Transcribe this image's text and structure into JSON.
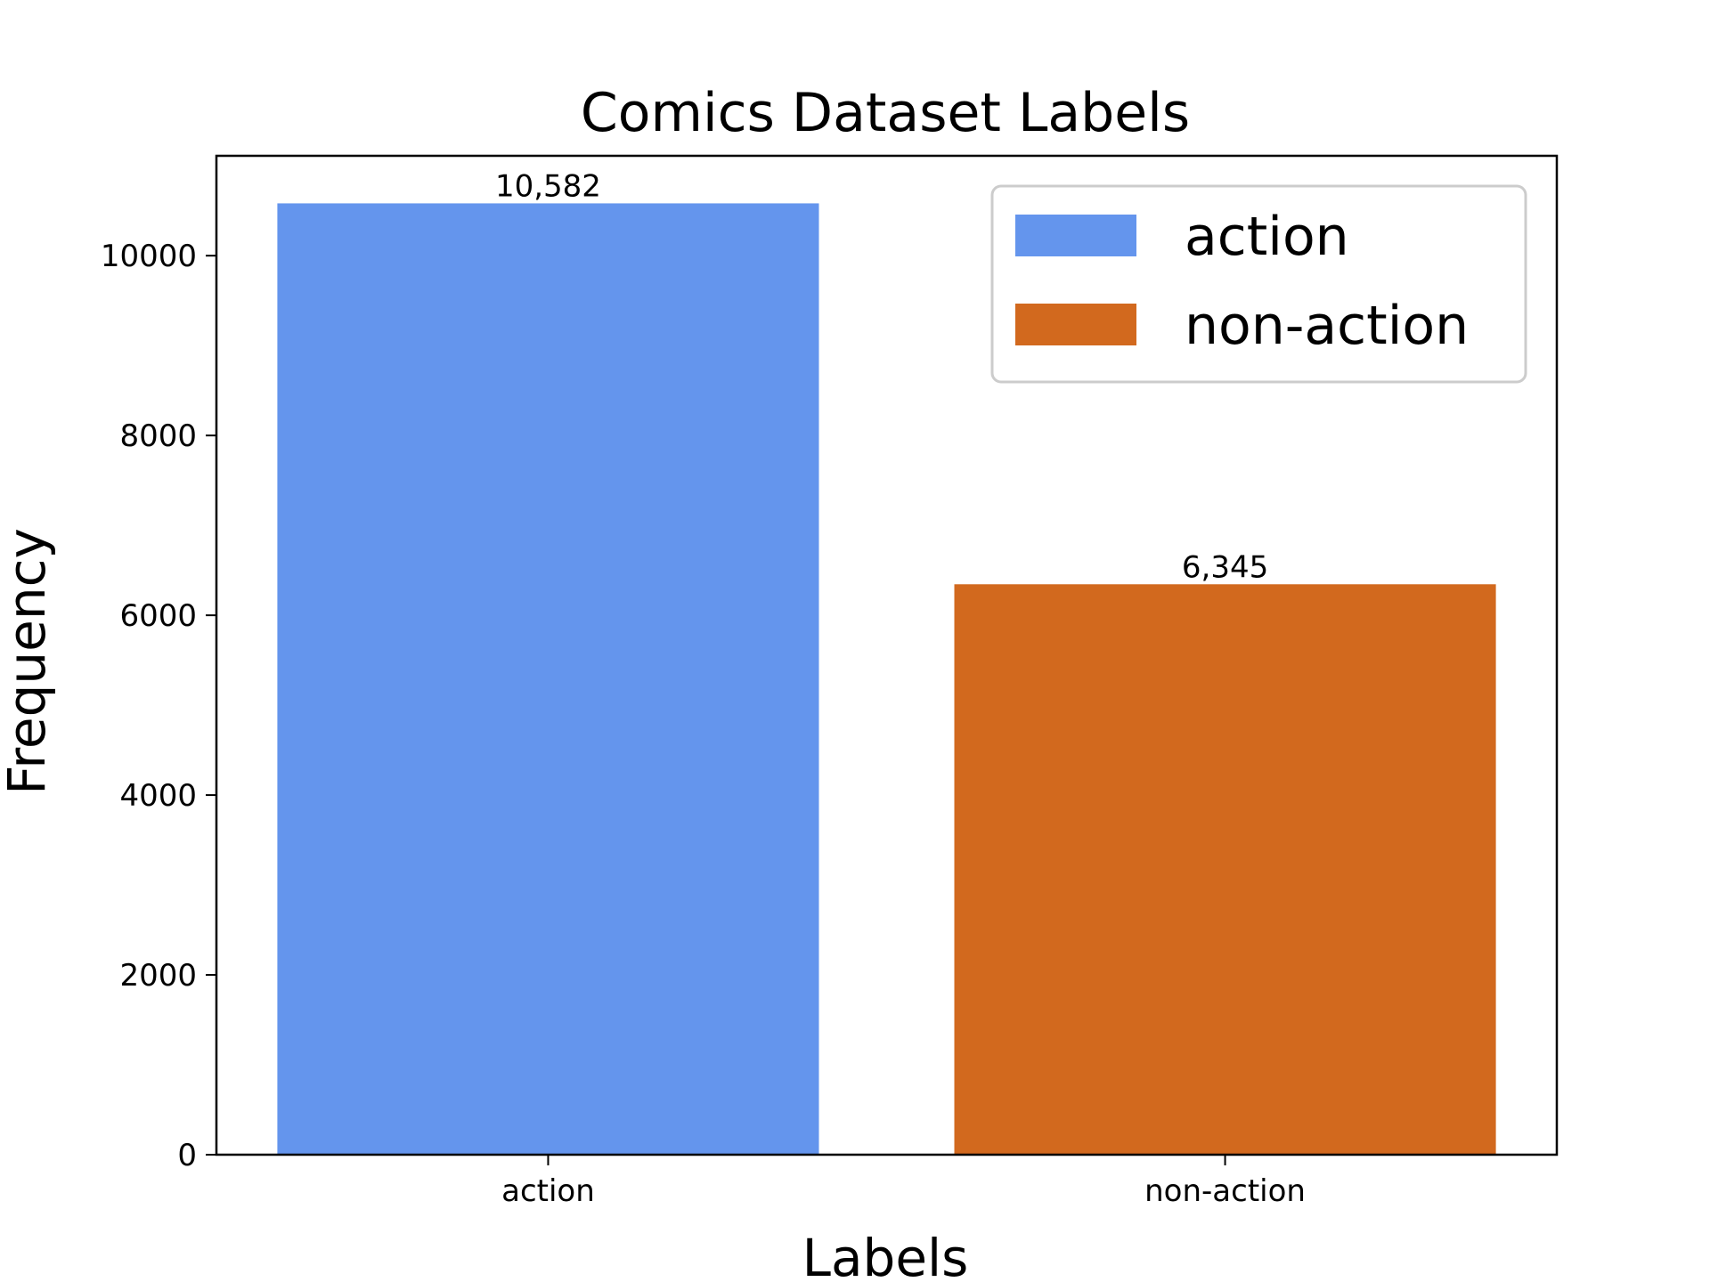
{
  "chart_data": {
    "type": "bar",
    "title": "Comics Dataset Labels",
    "xlabel": "Labels",
    "ylabel": "Frequency",
    "categories": [
      "action",
      "non-action"
    ],
    "values": [
      10582,
      6345
    ],
    "value_labels": [
      "10,582",
      "6,345"
    ],
    "colors": [
      "#6495ED",
      "#D2691E"
    ],
    "ylim": [
      0,
      11111
    ],
    "yticks": [
      0,
      2000,
      4000,
      6000,
      8000,
      10000
    ],
    "ytick_labels": [
      "0",
      "2000",
      "4000",
      "6000",
      "8000",
      "10000"
    ],
    "grid": false,
    "legend": {
      "placement": "top-right",
      "entries": [
        {
          "label": "action",
          "color": "#6495ED"
        },
        {
          "label": "non-action",
          "color": "#D2691E"
        }
      ]
    }
  }
}
